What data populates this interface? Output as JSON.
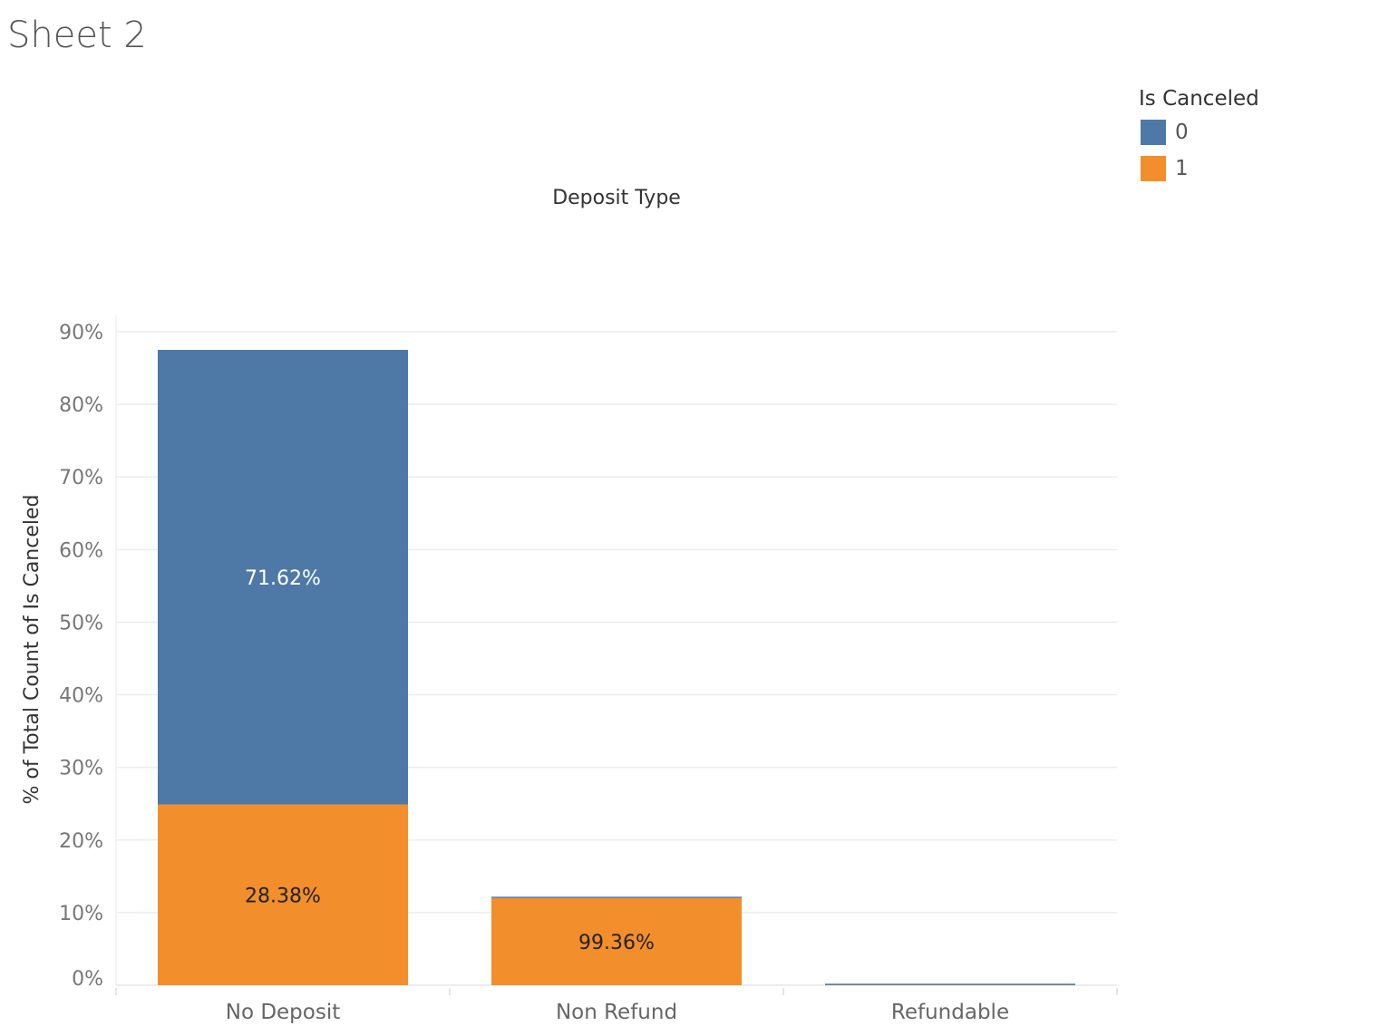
{
  "sheet_title": "Sheet 2",
  "legend": {
    "title": "Is Canceled",
    "items": [
      {
        "label": "0",
        "color": "#4e79a7"
      },
      {
        "label": "1",
        "color": "#f28e2b"
      }
    ]
  },
  "chart_data": {
    "type": "bar",
    "stacked": true,
    "column_header": "Deposit Type",
    "ylabel": "% of Total Count of Is Canceled",
    "ylim": [
      0,
      90
    ],
    "yticks": [
      0,
      10,
      20,
      30,
      40,
      50,
      60,
      70,
      80,
      90
    ],
    "ytick_labels": [
      "0%",
      "10%",
      "20%",
      "30%",
      "40%",
      "50%",
      "60%",
      "70%",
      "80%",
      "90%"
    ],
    "grid": true,
    "categories": [
      "No Deposit",
      "Non Refund",
      "Refundable"
    ],
    "series": [
      {
        "name": "1",
        "color": "#f28e2b",
        "values": [
          24.9,
          12.0,
          0.02
        ]
      },
      {
        "name": "0",
        "color": "#4e79a7",
        "values": [
          62.6,
          0.1,
          0.1
        ]
      }
    ],
    "data_labels": [
      {
        "category": "No Deposit",
        "series": "0",
        "text": "71.62%",
        "color": "#ffffff"
      },
      {
        "category": "No Deposit",
        "series": "1",
        "text": "28.38%",
        "color": "#222222"
      },
      {
        "category": "Non Refund",
        "series": "1",
        "text": "99.36%",
        "color": "#222222"
      }
    ]
  }
}
